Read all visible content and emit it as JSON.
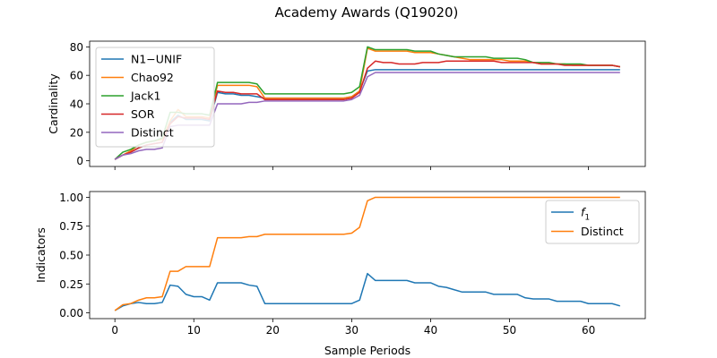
{
  "figure": {
    "title": "Academy Awards (Q19020)"
  },
  "chart_data": [
    {
      "type": "line",
      "title": "Academy Awards (Q19020)",
      "xlabel": "",
      "ylabel": "Cardinality",
      "xlim": [
        -3.2,
        67.2
      ],
      "ylim": [
        -4,
        84
      ],
      "xticks": [
        0,
        10,
        20,
        30,
        40,
        50,
        60
      ],
      "yticks": [
        0,
        20,
        40,
        60,
        80
      ],
      "x_ticklabels_visible": false,
      "legend": "top-left",
      "grid": false,
      "x": [
        0,
        1,
        2,
        3,
        4,
        5,
        6,
        7,
        8,
        9,
        10,
        11,
        12,
        13,
        14,
        15,
        16,
        17,
        18,
        19,
        20,
        21,
        22,
        23,
        24,
        25,
        26,
        27,
        28,
        29,
        30,
        31,
        32,
        33,
        34,
        35,
        36,
        37,
        38,
        39,
        40,
        41,
        42,
        43,
        44,
        45,
        46,
        47,
        48,
        49,
        50,
        51,
        52,
        53,
        54,
        55,
        56,
        57,
        58,
        59,
        60,
        61,
        62,
        63,
        64
      ],
      "series": [
        {
          "name": "N1−UNIF",
          "color": "#1f77b4",
          "values": [
            1,
            4,
            6,
            9,
            11,
            12,
            13,
            27,
            32,
            29,
            29,
            29,
            28,
            48,
            47,
            47,
            46,
            46,
            45,
            44,
            44,
            44,
            44,
            44,
            44,
            44,
            44,
            44,
            44,
            44,
            45,
            49,
            63,
            64,
            64,
            64,
            64,
            64,
            64,
            64,
            64,
            64,
            64,
            64,
            64,
            64,
            64,
            64,
            64,
            64,
            64,
            64,
            64,
            64,
            64,
            64,
            64,
            64,
            64,
            64,
            64,
            64,
            64,
            64,
            64
          ]
        },
        {
          "name": "Chao92",
          "color": "#ff7f0e",
          "values": [
            1,
            4,
            7,
            11,
            13,
            14,
            15,
            28,
            36,
            31,
            31,
            31,
            30,
            53,
            53,
            53,
            53,
            53,
            52,
            44,
            44,
            44,
            44,
            44,
            44,
            44,
            44,
            44,
            44,
            44,
            45,
            49,
            79,
            77,
            77,
            77,
            77,
            77,
            76,
            76,
            76,
            75,
            74,
            73,
            72,
            71,
            71,
            71,
            71,
            71,
            70,
            70,
            70,
            69,
            68,
            68,
            68,
            68,
            67,
            67,
            67,
            67,
            67,
            67,
            66
          ]
        },
        {
          "name": "Jack1",
          "color": "#2ca02c",
          "values": [
            1,
            6,
            8,
            11,
            13,
            14,
            16,
            34,
            34,
            33,
            33,
            33,
            32,
            55,
            55,
            55,
            55,
            55,
            54,
            47,
            47,
            47,
            47,
            47,
            47,
            47,
            47,
            47,
            47,
            47,
            48,
            52,
            80,
            78,
            78,
            78,
            78,
            78,
            77,
            77,
            77,
            75,
            74,
            73,
            73,
            73,
            73,
            73,
            72,
            72,
            72,
            72,
            71,
            69,
            69,
            69,
            68,
            68,
            68,
            68,
            67,
            67,
            67,
            67,
            66
          ]
        },
        {
          "name": "SOR",
          "color": "#d62728",
          "values": [
            1,
            4,
            6,
            9,
            11,
            12,
            13,
            26,
            31,
            30,
            30,
            30,
            29,
            49,
            48,
            48,
            47,
            47,
            47,
            43,
            43,
            43,
            43,
            43,
            43,
            43,
            43,
            43,
            43,
            43,
            44,
            48,
            65,
            70,
            69,
            69,
            68,
            68,
            68,
            69,
            69,
            69,
            70,
            70,
            70,
            70,
            70,
            70,
            70,
            69,
            69,
            69,
            69,
            69,
            68,
            68,
            68,
            67,
            67,
            67,
            67,
            67,
            67,
            67,
            66
          ]
        },
        {
          "name": "Distinct",
          "color": "#9467bd",
          "values": [
            1,
            4,
            5,
            7,
            8,
            8,
            9,
            24,
            25,
            25,
            25,
            25,
            25,
            40,
            40,
            40,
            40,
            41,
            41,
            42,
            42,
            42,
            42,
            42,
            42,
            42,
            42,
            42,
            42,
            42,
            43,
            46,
            59,
            62,
            62,
            62,
            62,
            62,
            62,
            62,
            62,
            62,
            62,
            62,
            62,
            62,
            62,
            62,
            62,
            62,
            62,
            62,
            62,
            62,
            62,
            62,
            62,
            62,
            62,
            62,
            62,
            62,
            62,
            62,
            62
          ]
        }
      ]
    },
    {
      "type": "line",
      "title": "",
      "xlabel": "Sample Periods",
      "ylabel": "Indicators",
      "xlim": [
        -3.2,
        67.2
      ],
      "ylim": [
        -0.05,
        1.05
      ],
      "xticks": [
        0,
        10,
        20,
        30,
        40,
        50,
        60
      ],
      "yticks": [
        0,
        0.25,
        0.5,
        0.75,
        1.0
      ],
      "xtick_labels": [
        "0",
        "10",
        "20",
        "30",
        "40",
        "50",
        "60"
      ],
      "ytick_labels": [
        "0.00",
        "0.25",
        "0.50",
        "0.75",
        "1.00"
      ],
      "legend": "top-right",
      "grid": false,
      "x": [
        0,
        1,
        2,
        3,
        4,
        5,
        6,
        7,
        8,
        9,
        10,
        11,
        12,
        13,
        14,
        15,
        16,
        17,
        18,
        19,
        20,
        21,
        22,
        23,
        24,
        25,
        26,
        27,
        28,
        29,
        30,
        31,
        32,
        33,
        34,
        35,
        36,
        37,
        38,
        39,
        40,
        41,
        42,
        43,
        44,
        45,
        46,
        47,
        48,
        49,
        50,
        51,
        52,
        53,
        54,
        55,
        56,
        57,
        58,
        59,
        60,
        61,
        62,
        63,
        64
      ],
      "series": [
        {
          "name": "f",
          "name_subscript": "1",
          "color": "#1f77b4",
          "values": [
            0.02,
            0.06,
            0.08,
            0.09,
            0.08,
            0.08,
            0.09,
            0.24,
            0.23,
            0.16,
            0.14,
            0.14,
            0.11,
            0.26,
            0.26,
            0.26,
            0.26,
            0.24,
            0.23,
            0.08,
            0.08,
            0.08,
            0.08,
            0.08,
            0.08,
            0.08,
            0.08,
            0.08,
            0.08,
            0.08,
            0.08,
            0.11,
            0.34,
            0.28,
            0.28,
            0.28,
            0.28,
            0.28,
            0.26,
            0.26,
            0.26,
            0.23,
            0.22,
            0.2,
            0.18,
            0.18,
            0.18,
            0.18,
            0.16,
            0.16,
            0.16,
            0.16,
            0.13,
            0.12,
            0.12,
            0.12,
            0.1,
            0.1,
            0.1,
            0.1,
            0.08,
            0.08,
            0.08,
            0.08,
            0.06
          ]
        },
        {
          "name": "Distinct",
          "color": "#ff7f0e",
          "values": [
            0.02,
            0.07,
            0.08,
            0.11,
            0.13,
            0.13,
            0.14,
            0.36,
            0.36,
            0.4,
            0.4,
            0.4,
            0.4,
            0.65,
            0.65,
            0.65,
            0.65,
            0.66,
            0.66,
            0.68,
            0.68,
            0.68,
            0.68,
            0.68,
            0.68,
            0.68,
            0.68,
            0.68,
            0.68,
            0.68,
            0.69,
            0.74,
            0.97,
            1.0,
            1.0,
            1.0,
            1.0,
            1.0,
            1.0,
            1.0,
            1.0,
            1.0,
            1.0,
            1.0,
            1.0,
            1.0,
            1.0,
            1.0,
            1.0,
            1.0,
            1.0,
            1.0,
            1.0,
            1.0,
            1.0,
            1.0,
            1.0,
            1.0,
            1.0,
            1.0,
            1.0,
            1.0,
            1.0,
            1.0,
            1.0
          ]
        }
      ]
    }
  ]
}
